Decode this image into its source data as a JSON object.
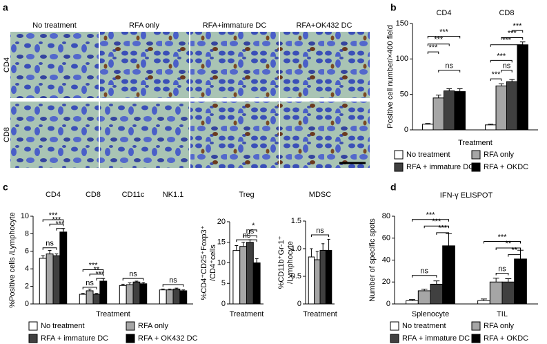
{
  "panel_a": {
    "panel_label": "a",
    "columns": [
      "No treatment",
      "RFA only",
      "RFA+immature DC",
      "RFA+OK432 DC"
    ],
    "rows": [
      "CD4",
      "CD8"
    ]
  },
  "chart_data": [
    {
      "type": "bar",
      "panel_label": "b",
      "categories": [
        "CD4",
        "CD8"
      ],
      "xlabel": "Treatment",
      "ylabel": "Positive cell number/×400 field",
      "ylim": [
        0,
        150
      ],
      "yticks": [
        0,
        50,
        100,
        150
      ],
      "series": [
        {
          "name": "No treatment",
          "color": "#ffffff",
          "values": [
            8,
            7
          ],
          "errors": [
            1,
            1
          ]
        },
        {
          "name": "RFA only",
          "color": "#a6a6a6",
          "values": [
            45,
            62
          ],
          "errors": [
            4,
            3
          ]
        },
        {
          "name": "RFA + immature DC",
          "color": "#404040",
          "values": [
            55,
            68
          ],
          "errors": [
            3,
            3
          ]
        },
        {
          "name": "RFA + OKDC",
          "color": "#000000",
          "values": [
            54,
            120
          ],
          "errors": [
            4,
            4
          ]
        }
      ],
      "annotations": [
        "***",
        "***",
        "***",
        "ns",
        "***",
        "***",
        "***",
        "***",
        "ns",
        "***"
      ]
    },
    {
      "type": "bar",
      "panel_label": "c",
      "categories": [
        "CD4",
        "CD8",
        "CD11c",
        "NK1.1"
      ],
      "xlabel": "Treatment",
      "ylabel": "%Positive cells /Lymphocyte",
      "ylim": [
        0,
        10
      ],
      "yticks": [
        0,
        2,
        4,
        6,
        8,
        10
      ],
      "series": [
        {
          "name": "No treatment",
          "color": "#ffffff",
          "values": [
            5.2,
            1.1,
            2.1,
            1.6
          ],
          "errors": [
            0.3,
            0.1,
            0.15,
            0.1
          ]
        },
        {
          "name": "RFA only",
          "color": "#a6a6a6",
          "values": [
            5.7,
            1.5,
            2.2,
            1.6
          ],
          "errors": [
            0.4,
            0.2,
            0.2,
            0.1
          ]
        },
        {
          "name": "RFA + immature DC",
          "color": "#404040",
          "values": [
            5.5,
            1.1,
            2.5,
            1.7
          ],
          "errors": [
            0.2,
            0.1,
            0.1,
            0.1
          ]
        },
        {
          "name": "RFA + OK432 DC",
          "color": "#000000",
          "values": [
            8.2,
            2.6,
            2.3,
            1.5
          ],
          "errors": [
            0.4,
            0.3,
            0.15,
            0.1
          ]
        }
      ],
      "annotations": [
        "***",
        "***",
        "***",
        "ns",
        "***",
        "**",
        "***",
        "ns",
        "ns",
        "ns"
      ]
    },
    {
      "type": "bar",
      "categories": [
        "Treg"
      ],
      "xlabel": "Treatment",
      "ylabel": [
        "%CD4⁺CD25⁺Foxp3⁺",
        "/CD4⁺cells"
      ],
      "ylim": [
        0,
        20
      ],
      "yticks": [
        0,
        5,
        10,
        15,
        20
      ],
      "series": [
        {
          "color": "#ffffff",
          "values": [
            13
          ],
          "errors": [
            1.2
          ]
        },
        {
          "color": "#a6a6a6",
          "values": [
            14
          ],
          "errors": [
            1
          ]
        },
        {
          "color": "#404040",
          "values": [
            15
          ],
          "errors": [
            0.6
          ]
        },
        {
          "color": "#000000",
          "values": [
            10
          ],
          "errors": [
            1
          ]
        }
      ],
      "annotations": [
        "*",
        "ns",
        "ns"
      ]
    },
    {
      "type": "bar",
      "categories": [
        "MDSC"
      ],
      "xlabel": "Treatment",
      "ylabel": [
        "%CD11b⁺Gr-1⁺",
        "/Lymphocyte"
      ],
      "ylim": [
        0,
        1.5
      ],
      "yticks": [
        0,
        0.5,
        {
          "value": 1,
          "label": "1.0"
        },
        1.5
      ],
      "series": [
        {
          "color": "#ffffff",
          "values": [
            0.85
          ],
          "errors": [
            0.15
          ]
        },
        {
          "color": "#a6a6a6",
          "values": [
            0.8
          ],
          "errors": [
            0.15
          ]
        },
        {
          "color": "#404040",
          "values": [
            0.97
          ],
          "errors": [
            0.12
          ]
        },
        {
          "color": "#000000",
          "values": [
            0.97
          ],
          "errors": [
            0.2
          ]
        }
      ],
      "annotations": [
        "ns"
      ]
    },
    {
      "type": "bar",
      "panel_label": "d",
      "title": "IFN-γ ELISPOT",
      "categories": [
        "Splenocyte",
        "TIL"
      ],
      "ylabel": "Number of specific spots",
      "ylim": [
        0,
        80
      ],
      "yticks": [
        0,
        20,
        40,
        60,
        80
      ],
      "series": [
        {
          "name": "No treatment",
          "color": "#ffffff",
          "values": [
            3,
            3
          ],
          "errors": [
            1,
            1.5
          ]
        },
        {
          "name": "RFA only",
          "color": "#a6a6a6",
          "values": [
            12,
            20
          ],
          "errors": [
            1.5,
            3.5
          ]
        },
        {
          "name": "RFA + immature DC",
          "color": "#404040",
          "values": [
            18,
            20
          ],
          "errors": [
            3,
            3
          ]
        },
        {
          "name": "RFA + OKDC",
          "color": "#000000",
          "values": [
            53,
            41
          ],
          "errors": [
            11,
            8
          ]
        }
      ],
      "annotations": [
        "***",
        "***",
        "***",
        "ns",
        "***",
        "**",
        "**",
        "ns"
      ]
    }
  ]
}
